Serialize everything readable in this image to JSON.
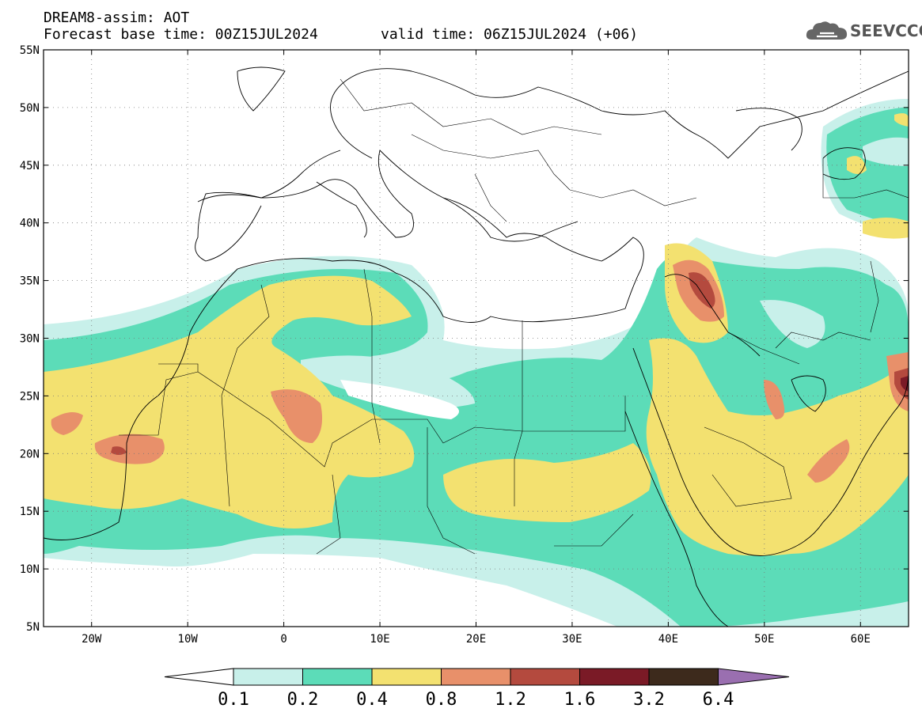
{
  "header": {
    "line1": "DREAM8-assim: AOT",
    "line2_left": "Forecast base time: 00Z15JUL2024",
    "line2_right": "valid time: 06Z15JUL2024 (+06)"
  },
  "logo": {
    "text": "SEEVCCC",
    "icon": "cloud-icon"
  },
  "map": {
    "lat_labels": [
      "55N",
      "50N",
      "45N",
      "40N",
      "35N",
      "30N",
      "25N",
      "20N",
      "15N",
      "10N",
      "5N"
    ],
    "lon_labels": [
      "20W",
      "10W",
      "0",
      "10E",
      "20E",
      "30E",
      "40E",
      "50E",
      "60E"
    ],
    "lat_range": [
      5,
      55
    ],
    "lon_range": [
      -25,
      65
    ]
  },
  "colorbar": {
    "labels": [
      "0.1",
      "0.2",
      "0.4",
      "0.8",
      "1.2",
      "1.6",
      "3.2",
      "6.4"
    ],
    "colors": [
      "#c8f0ea",
      "#5cdcb8",
      "#f3e170",
      "#e8906a",
      "#b44a3e",
      "#7a1a26",
      "#3d2a1c",
      "#9a6fb0"
    ]
  }
}
